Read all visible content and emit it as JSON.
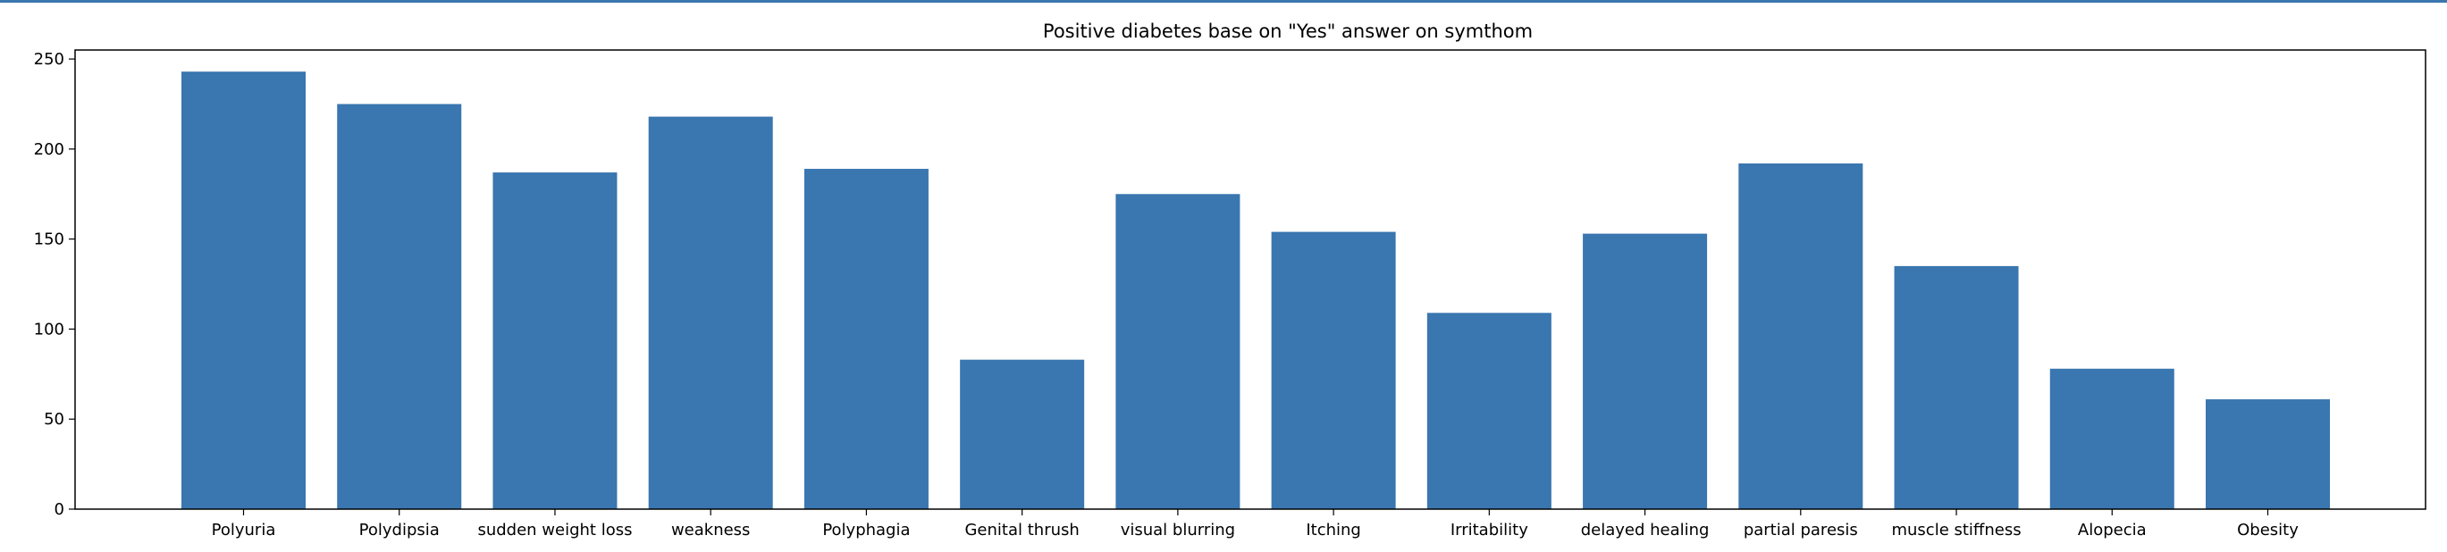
{
  "colors": {
    "bar": "#3a76af",
    "top_rule": "#3a76af",
    "axis": "#000000"
  },
  "chart_data": {
    "type": "bar",
    "title": "Positive diabetes base on \"Yes\" answer on symthom",
    "xlabel": "",
    "ylabel": "",
    "categories": [
      "Polyuria",
      "Polydipsia",
      "sudden weight loss",
      "weakness",
      "Polyphagia",
      "Genital thrush",
      "visual blurring",
      "Itching",
      "Irritability",
      "delayed healing",
      "partial paresis",
      "muscle stiffness",
      "Alopecia",
      "Obesity"
    ],
    "values": [
      243,
      225,
      187,
      218,
      189,
      83,
      175,
      154,
      109,
      153,
      192,
      135,
      78,
      61
    ],
    "ylim": [
      0,
      255
    ],
    "yticks": [
      "0",
      "50",
      "100",
      "150",
      "200",
      "250"
    ],
    "grid": false,
    "legend": "none"
  }
}
